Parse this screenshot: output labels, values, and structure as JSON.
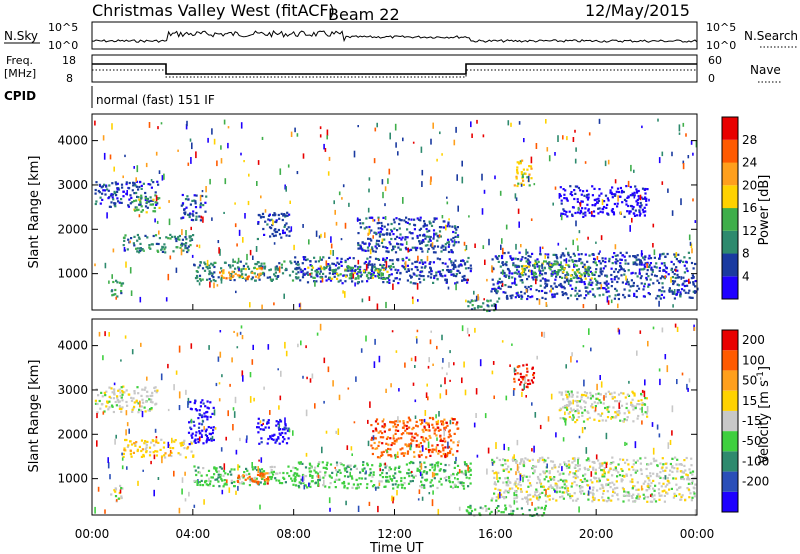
{
  "header": {
    "title": "Christmas Valley West (fitACF)",
    "beam": "Beam 22",
    "date": "12/May/2015"
  },
  "params": {
    "nsky_label": "N.Sky",
    "nsearch_label": "N.Search",
    "freq_label_1": "Freq.",
    "freq_label_2": "[MHz]",
    "nave_label": "Nave",
    "cpid_label": "CPID",
    "cpid_value": "normal (fast) 151 IF",
    "noise_ticks_left": [
      "10^5",
      "10^0"
    ],
    "noise_ticks_right": [
      "10^5",
      "10^0"
    ],
    "freq_ticks_left": [
      "18",
      "8"
    ],
    "nave_ticks_right": [
      "60",
      "0"
    ]
  },
  "axes": {
    "xlabel": "Time UT",
    "ylabel": "Slant Range [km]",
    "x_ticks": [
      "00:00",
      "04:00",
      "08:00",
      "12:00",
      "16:00",
      "20:00",
      "00:00"
    ],
    "y_ticks": [
      "1000",
      "2000",
      "3000",
      "4000"
    ]
  },
  "chart_data": [
    {
      "type": "heatmap",
      "name": "power",
      "xlim": [
        0,
        24
      ],
      "ylim": [
        180,
        4600
      ],
      "colorbar_label": "Power [dB]",
      "colorbar_ticks": [
        "4",
        "8",
        "12",
        "16",
        "20",
        "24",
        "28"
      ],
      "colors": [
        "#1f00ff",
        "#1a3aa0",
        "#2e8a6e",
        "#3fae4a",
        "#ffd200",
        "#ff9f1c",
        "#ff5a00",
        "#e80000"
      ],
      "patches": [
        {
          "t0": 0.1,
          "t1": 2.6,
          "r0": 2500,
          "r1": 3100,
          "level": 1
        },
        {
          "t0": 1.6,
          "t1": 2.7,
          "r0": 2400,
          "r1": 2800,
          "level": 3
        },
        {
          "t0": 1.2,
          "t1": 4.0,
          "r0": 1500,
          "r1": 1900,
          "level": 2
        },
        {
          "t0": 4.0,
          "t1": 8.2,
          "r0": 850,
          "r1": 1300,
          "level": 2
        },
        {
          "t0": 5.0,
          "t1": 6.8,
          "r0": 900,
          "r1": 1150,
          "level": 5
        },
        {
          "t0": 8.0,
          "t1": 15.0,
          "r0": 800,
          "r1": 1400,
          "level": 1
        },
        {
          "t0": 8.5,
          "t1": 12.0,
          "r0": 900,
          "r1": 1200,
          "level": 3
        },
        {
          "t0": 10.5,
          "t1": 14.5,
          "r0": 1500,
          "r1": 2300,
          "level": 1
        },
        {
          "t0": 3.5,
          "t1": 4.5,
          "r0": 2200,
          "r1": 2800,
          "level": 1
        },
        {
          "t0": 6.5,
          "t1": 7.8,
          "r0": 1800,
          "r1": 2400,
          "level": 1
        },
        {
          "t0": 16.7,
          "t1": 17.4,
          "r0": 3000,
          "r1": 3600,
          "level": 4
        },
        {
          "t0": 15.8,
          "t1": 23.9,
          "r0": 450,
          "r1": 1500,
          "level": 1
        },
        {
          "t0": 17.0,
          "t1": 20.0,
          "r0": 900,
          "r1": 1300,
          "level": 3
        },
        {
          "t0": 18.5,
          "t1": 22.0,
          "r0": 2300,
          "r1": 3000,
          "level": 0
        },
        {
          "t0": 0.7,
          "t1": 1.2,
          "r0": 500,
          "r1": 900,
          "level": 2
        },
        {
          "t0": 14.8,
          "t1": 16.2,
          "r0": 180,
          "r1": 420,
          "level": 2
        }
      ]
    },
    {
      "type": "heatmap",
      "name": "velocity",
      "xlim": [
        0,
        24
      ],
      "ylim": [
        180,
        4600
      ],
      "colorbar_label": "Velocity [m s^-1]",
      "colorbar_ticks": [
        "200",
        "100",
        "50",
        "15",
        "-15",
        "-50",
        "-100",
        "-200"
      ],
      "colors": [
        "#1f00ff",
        "#2a4fb8",
        "#2e8a6e",
        "#3fcf3f",
        "#c8c8c8",
        "#ffd200",
        "#ff9f1c",
        "#ff5a00",
        "#e80000"
      ],
      "patches": [
        {
          "t0": 0.1,
          "t1": 2.6,
          "r0": 2500,
          "r1": 3100,
          "level": 4
        },
        {
          "t0": 1.2,
          "t1": 4.0,
          "r0": 1500,
          "r1": 1900,
          "level": 5
        },
        {
          "t0": 4.0,
          "t1": 8.2,
          "r0": 850,
          "r1": 1300,
          "level": 3
        },
        {
          "t0": 5.5,
          "t1": 7.0,
          "r0": 900,
          "r1": 1200,
          "level": 7
        },
        {
          "t0": 8.0,
          "t1": 15.0,
          "r0": 800,
          "r1": 1400,
          "level": 3
        },
        {
          "t0": 11.0,
          "t1": 14.5,
          "r0": 1500,
          "r1": 2400,
          "level": 7
        },
        {
          "t0": 3.8,
          "t1": 4.8,
          "r0": 1800,
          "r1": 2800,
          "level": 0
        },
        {
          "t0": 6.5,
          "t1": 7.8,
          "r0": 1800,
          "r1": 2400,
          "level": 0
        },
        {
          "t0": 16.7,
          "t1": 17.5,
          "r0": 3000,
          "r1": 3600,
          "level": 8
        },
        {
          "t0": 15.8,
          "t1": 23.9,
          "r0": 500,
          "r1": 1500,
          "level": 4
        },
        {
          "t0": 18.5,
          "t1": 22.0,
          "r0": 2300,
          "r1": 3000,
          "level": 4
        },
        {
          "t0": 0.7,
          "t1": 1.2,
          "r0": 500,
          "r1": 900,
          "level": 4
        },
        {
          "t0": 14.8,
          "t1": 18.0,
          "r0": 180,
          "r1": 420,
          "level": 3
        }
      ]
    }
  ]
}
